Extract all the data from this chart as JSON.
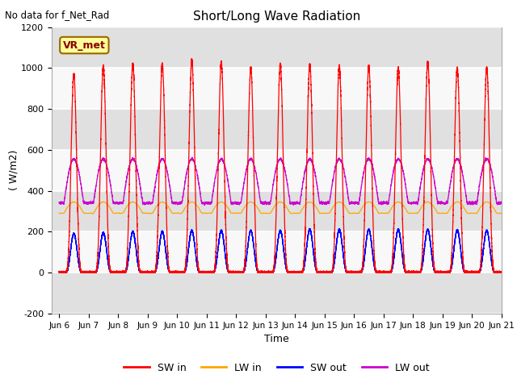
{
  "title": "Short/Long Wave Radiation",
  "xlabel": "Time",
  "ylabel": "( W/m2)",
  "ylim": [
    -200,
    1200
  ],
  "xlim_start": 5.75,
  "xlim_end": 21.0,
  "xtick_labels": [
    "Jun 6",
    "Jun 7",
    "Jun 8",
    "Jun 9",
    "Jun 10",
    "Jun 11",
    "Jun 12",
    "Jun 13",
    "Jun 14",
    "Jun 15",
    "Jun 16",
    "Jun 17",
    "Jun 18",
    "Jun 19",
    "Jun 20",
    "Jun 21"
  ],
  "xtick_positions": [
    6,
    7,
    8,
    9,
    10,
    11,
    12,
    13,
    14,
    15,
    16,
    17,
    18,
    19,
    20,
    21
  ],
  "ytick_positions": [
    -200,
    0,
    200,
    400,
    600,
    800,
    1000,
    1200
  ],
  "colors": {
    "SW_in": "#ff0000",
    "LW_in": "#ffa500",
    "SW_out": "#0000ff",
    "LW_out": "#cc00cc"
  },
  "legend_label": "VR_met",
  "no_data_text": "No data for f_Net_Rad",
  "n_days": 15,
  "day_start": 6,
  "SW_in_peaks": [
    970,
    1010,
    1020,
    1020,
    1040,
    1030,
    1000,
    1020,
    1020,
    1010,
    1010,
    1000,
    1030,
    1000,
    1000
  ],
  "LW_in_night": 290,
  "LW_in_day_add": 55,
  "LW_out_night": 340,
  "LW_out_day_add": 215,
  "SW_out_peaks": [
    190,
    195,
    200,
    200,
    205,
    205,
    205,
    205,
    210,
    210,
    210,
    210,
    210,
    208,
    205
  ]
}
